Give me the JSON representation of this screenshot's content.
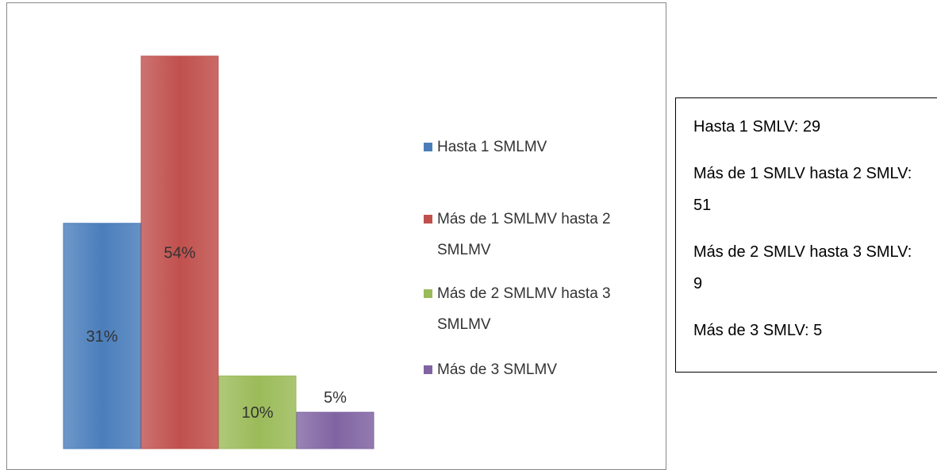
{
  "chart_data": {
    "type": "bar",
    "categories": [
      "Hasta 1 SMLMV",
      "Más de 1 SMLMV hasta 2 SMLMV",
      "Más de 2 SMLMV hasta 3 SMLMV",
      "Más de 3 SMLMV"
    ],
    "values": [
      31,
      54,
      10,
      5
    ],
    "value_labels": [
      "31%",
      "54%",
      "10%",
      "5%"
    ],
    "colors": [
      "#4a7ebb",
      "#c0504d",
      "#9bbb59",
      "#8064a2"
    ],
    "legend": "right"
  },
  "text_box": {
    "lines": [
      "Hasta 1 SMLV: 29",
      "Más de 1 SMLV hasta 2 SMLV: 51",
      "Más de 2 SMLV hasta 3 SMLV: 9",
      "Más de 3 SMLV: 5"
    ]
  }
}
